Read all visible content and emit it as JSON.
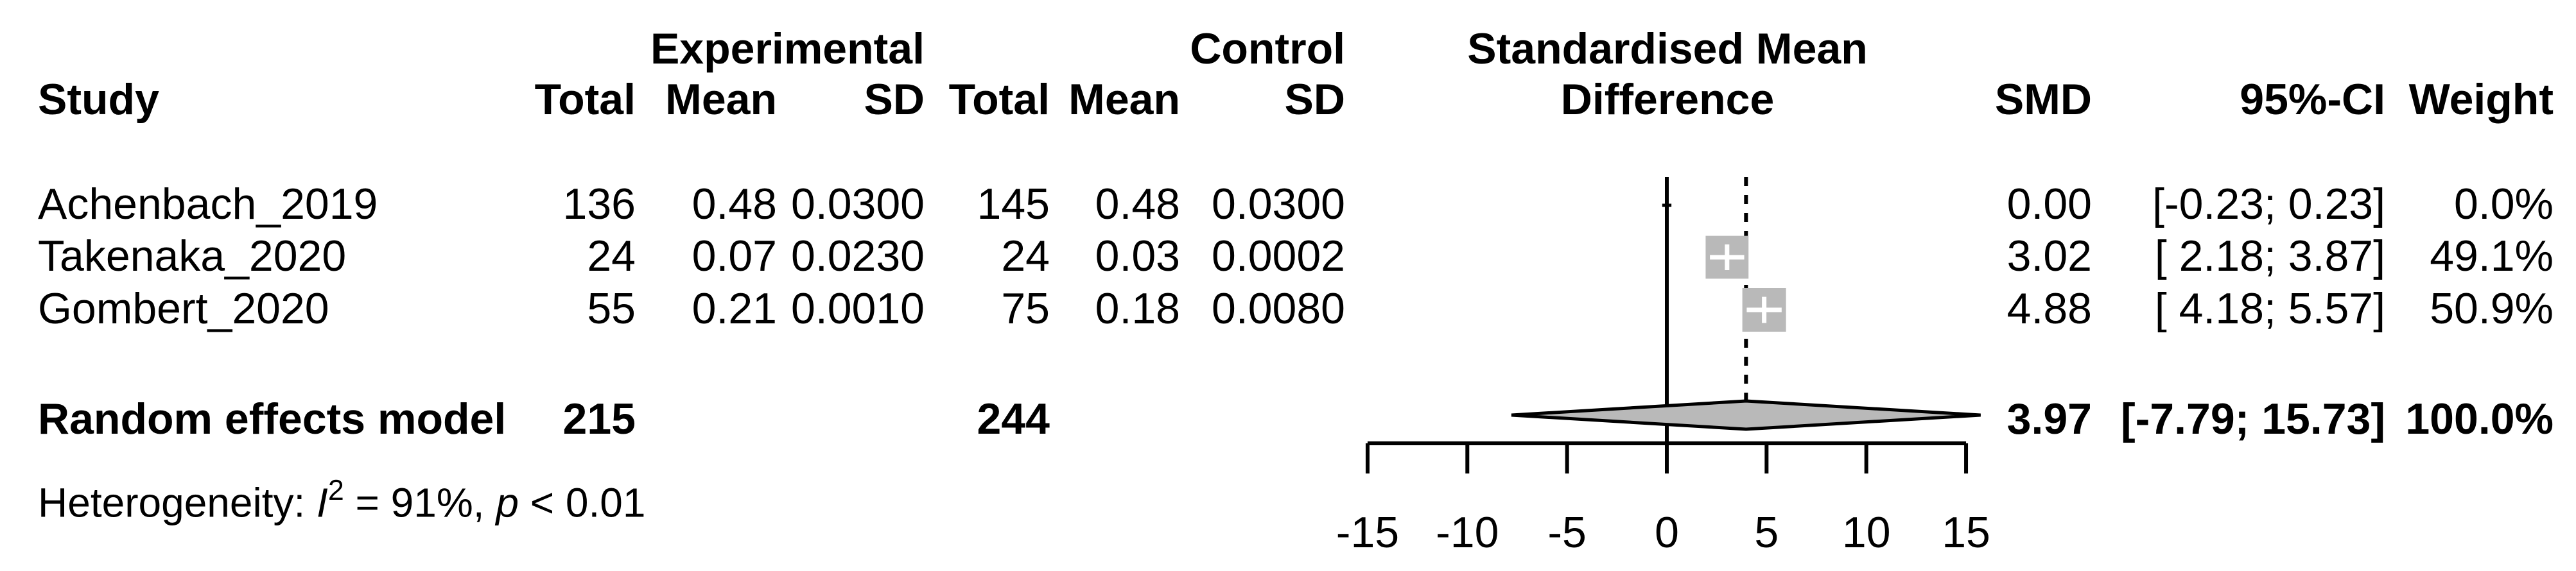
{
  "table": {
    "headers": {
      "group_experimental": "Experimental",
      "group_control": "Control",
      "group_effect_line1": "Standardised Mean",
      "group_effect_line2": "Difference",
      "study": "Study",
      "exp_total": "Total",
      "exp_mean": "Mean",
      "exp_sd": "SD",
      "ctrl_total": "Total",
      "ctrl_mean": "Mean",
      "ctrl_sd": "SD",
      "smd": "SMD",
      "ci": "95%-CI",
      "weight": "Weight"
    },
    "rows": [
      {
        "study": "Achenbach_2019",
        "exp_total": "136",
        "exp_mean": "0.48",
        "exp_sd": "0.0300",
        "ctrl_total": "145",
        "ctrl_mean": "0.48",
        "ctrl_sd": "0.0300",
        "smd": "0.00",
        "ci": "[-0.23; 0.23]",
        "weight": "0.0%"
      },
      {
        "study": "Takenaka_2020",
        "exp_total": "24",
        "exp_mean": "0.07",
        "exp_sd": "0.0230",
        "ctrl_total": "24",
        "ctrl_mean": "0.03",
        "ctrl_sd": "0.0002",
        "smd": "3.02",
        "ci": "[ 2.18; 3.87]",
        "weight": "49.1%"
      },
      {
        "study": "Gombert_2020",
        "exp_total": "55",
        "exp_mean": "0.21",
        "exp_sd": "0.0010",
        "ctrl_total": "75",
        "ctrl_mean": "0.18",
        "ctrl_sd": "0.0080",
        "smd": "4.88",
        "ci": "[ 4.18; 5.57]",
        "weight": "50.9%"
      }
    ],
    "pooled": {
      "label": "Random effects model",
      "exp_total": "215",
      "ctrl_total": "244",
      "smd": "3.97",
      "ci": "[-7.79; 15.73]",
      "weight": "100.0%"
    },
    "heterogeneity": {
      "pre": "Heterogeneity: ",
      "i": "I",
      "sup": "2",
      "eq": " = 91%, ",
      "p": "p",
      "post": " < 0.01"
    }
  },
  "chart_data": {
    "type": "scatter",
    "plot_style": "forest",
    "title": "Standardised Mean Difference",
    "xlabel": "",
    "xlim": [
      -15,
      15
    ],
    "x_ticks": [
      -15,
      -10,
      -5,
      0,
      5,
      10,
      15
    ],
    "zero_line_x": 0,
    "pooled_dashed_line_x": 3.97,
    "studies": [
      {
        "name": "Achenbach_2019",
        "smd": 0.0,
        "ci_low": -0.23,
        "ci_high": 0.23,
        "weight_pct": 0.0
      },
      {
        "name": "Takenaka_2020",
        "smd": 3.02,
        "ci_low": 2.18,
        "ci_high": 3.87,
        "weight_pct": 49.1
      },
      {
        "name": "Gombert_2020",
        "smd": 4.88,
        "ci_low": 4.18,
        "ci_high": 5.57,
        "weight_pct": 50.9
      }
    ],
    "pooled": {
      "label": "Random effects model",
      "smd": 3.97,
      "ci_low": -7.79,
      "ci_high": 15.73,
      "weight_pct": 100.0
    },
    "marker_color": "#b9b9b9",
    "diamond_color": "#b9b9b9",
    "line_color": "#000000"
  }
}
